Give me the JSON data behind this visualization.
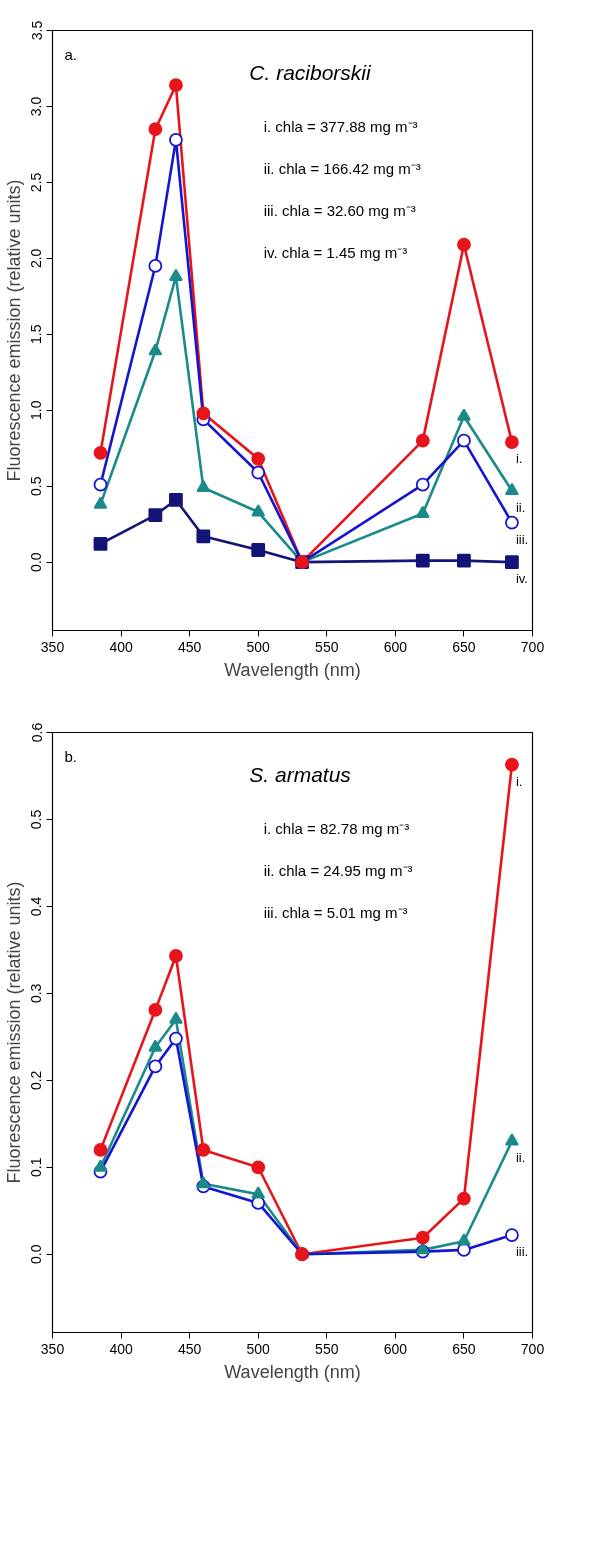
{
  "chart_data": [
    {
      "type": "line",
      "title": "C. raciborskii",
      "xlabel": "Wavelength (nm)",
      "ylabel": "Fluorescence emission (relative units)",
      "x": [
        385,
        425,
        440,
        460,
        500,
        532,
        620,
        650,
        685
      ],
      "xlim": [
        350,
        700
      ],
      "xticks": [
        350,
        400,
        450,
        500,
        550,
        600,
        650,
        700
      ],
      "ylim": [
        -0.45,
        3.5
      ],
      "yticks": [
        {
          "value": 0,
          "label": "0.0"
        },
        0.5,
        {
          "value": 1,
          "label": "1.0"
        },
        1.5,
        {
          "value": 2,
          "label": "2.0"
        },
        2.5,
        {
          "value": 3,
          "label": "3.0"
        },
        3.5
      ],
      "grid": false,
      "series": [
        {
          "name": "i.",
          "color": "#e8141b",
          "marker": "circle",
          "values": [
            0.72,
            2.85,
            3.14,
            0.98,
            0.68,
            0.0,
            0.8,
            2.09,
            0.79
          ]
        },
        {
          "name": "ii.",
          "color": "#1a8a8a",
          "marker": "triangle",
          "values": [
            0.38,
            1.39,
            1.88,
            0.49,
            0.33,
            0.0,
            0.32,
            0.96,
            0.47
          ]
        },
        {
          "name": "iii.",
          "color": "#1414d2",
          "marker": "circle_open",
          "values": [
            0.51,
            1.95,
            2.78,
            0.94,
            0.59,
            0.0,
            0.51,
            0.8,
            0.26
          ]
        },
        {
          "name": "iv.",
          "color": "#141478",
          "marker": "square",
          "values": [
            0.12,
            0.31,
            0.41,
            0.17,
            0.08,
            0.0,
            0.01,
            0.01,
            0.0
          ]
        }
      ],
      "annotations": [
        "a.",
        "i. chla = 377.88 mg m⁻³",
        "ii. chla = 166.42 mg m⁻³",
        "iii. chla = 32.60 mg m⁻³",
        "iv. chla = 1.45 mg m⁻³"
      ]
    },
    {
      "type": "line",
      "title": "S. armatus",
      "xlabel": "Wavelength (nm)",
      "ylabel": "Fluorescence emission (relative units)",
      "x": [
        385,
        425,
        440,
        460,
        500,
        532,
        620,
        650,
        685
      ],
      "xlim": [
        350,
        700
      ],
      "xticks": [
        350,
        400,
        450,
        500,
        550,
        600,
        650,
        700
      ],
      "ylim": [
        -0.09,
        0.6
      ],
      "yticks": [
        {
          "value": 0,
          "label": "0.0"
        },
        0.1,
        0.2,
        0.3,
        0.4,
        0.5,
        0.6
      ],
      "grid": false,
      "series": [
        {
          "name": "i.",
          "color": "#e8141b",
          "marker": "circle",
          "values": [
            0.12,
            0.281,
            0.343,
            0.12,
            0.1,
            0.0,
            0.019,
            0.064,
            0.563
          ]
        },
        {
          "name": "ii.",
          "color": "#1a8a8a",
          "marker": "triangle",
          "values": [
            0.1,
            0.238,
            0.27,
            0.081,
            0.069,
            0.0,
            0.005,
            0.015,
            0.13
          ]
        },
        {
          "name": "iii.",
          "color": "#1414d2",
          "marker": "circle_open",
          "values": [
            0.095,
            0.216,
            0.248,
            0.078,
            0.059,
            0.0,
            0.003,
            0.005,
            0.022
          ]
        }
      ],
      "annotations": [
        "b.",
        "i. chla = 82.78 mg m⁻³",
        "ii. chla = 24.95 mg m⁻³",
        "iii. chla = 5.01 mg m⁻³"
      ]
    }
  ]
}
